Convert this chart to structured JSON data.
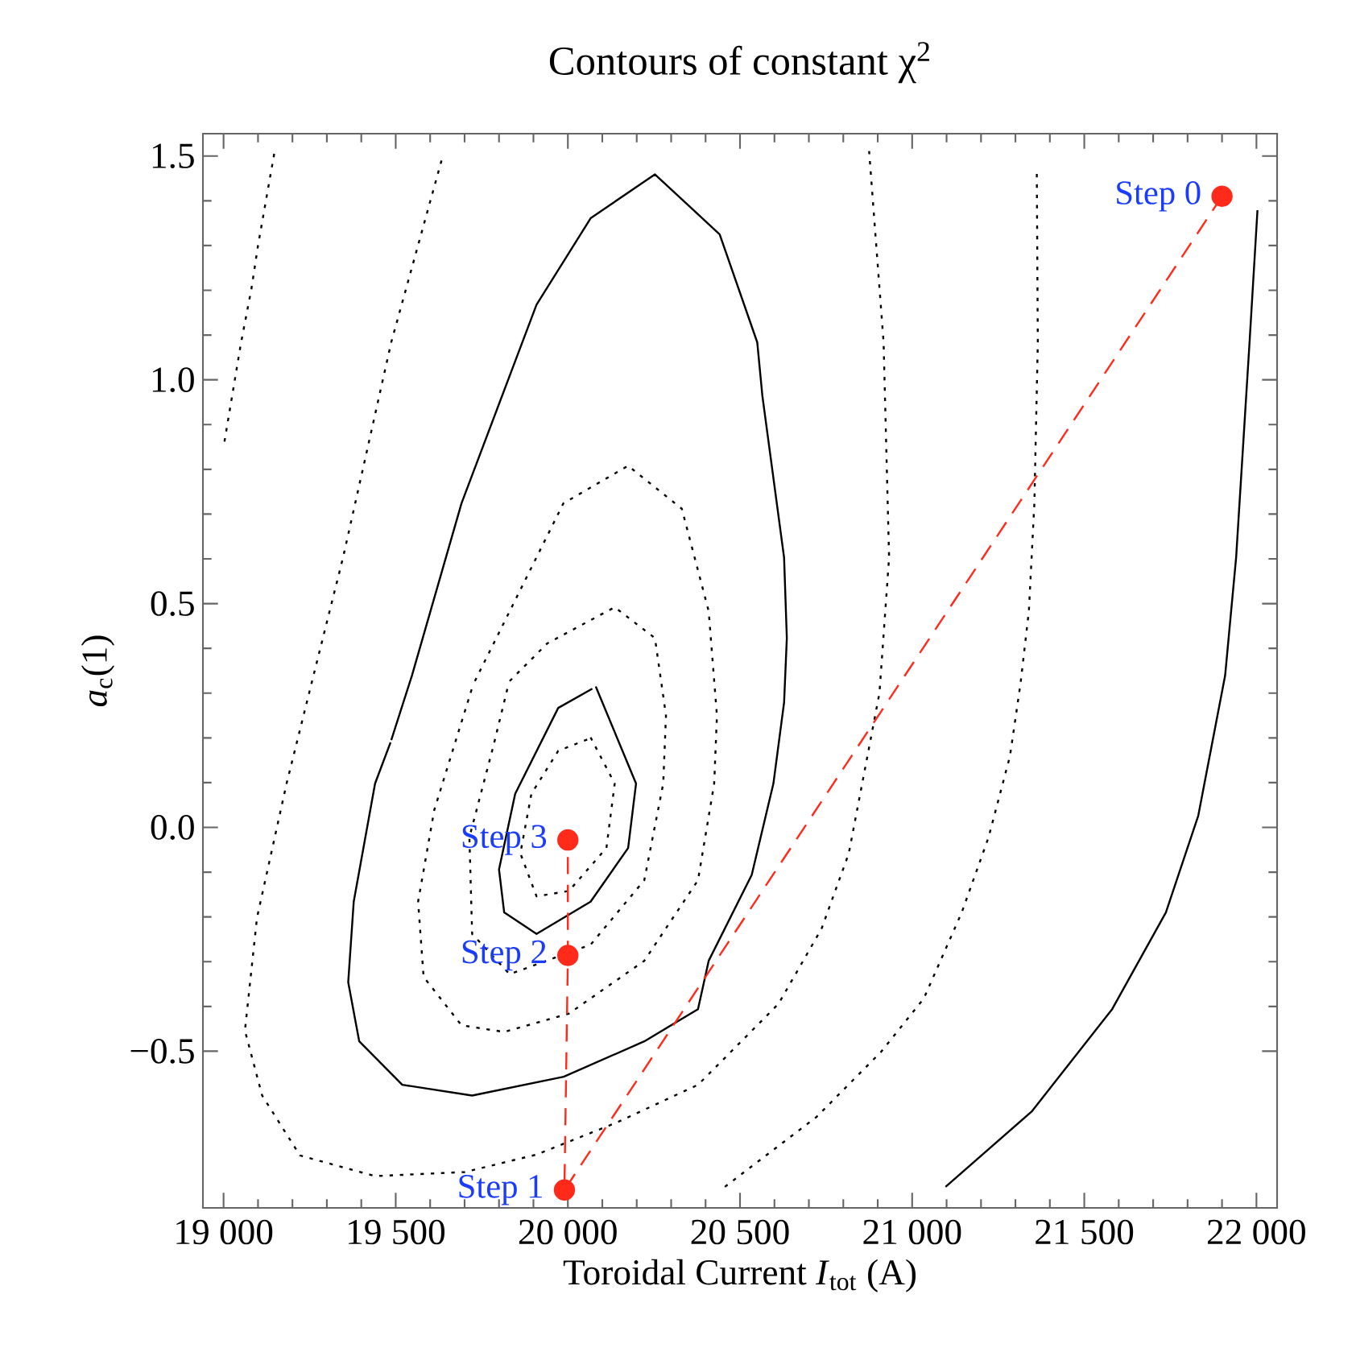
{
  "chart_data": {
    "type": "line",
    "title": "Contours of constant χ$^{2}$",
    "xlabel": "Toroidal Current *I*$_{tot}$ (A)",
    "ylabel": "*a*$_{c}$(1)",
    "xlim": [
      18940,
      22060
    ],
    "ylim": [
      -0.85,
      1.55
    ],
    "xticks": [
      {
        "value": 19000,
        "label": "19 000"
      },
      {
        "value": 19500,
        "label": "19 500"
      },
      {
        "value": 20000,
        "label": "20 000"
      },
      {
        "value": 20500,
        "label": "20 500"
      },
      {
        "value": 21000,
        "label": "21 000"
      },
      {
        "value": 21500,
        "label": "21 500"
      },
      {
        "value": 22000,
        "label": "22 000"
      }
    ],
    "yticks": [
      {
        "value": -0.5,
        "label": "−0.5"
      },
      {
        "value": 0,
        "label": "0.0"
      },
      {
        "value": 0.5,
        "label": "0.5"
      },
      {
        "value": 1,
        "label": "1.0"
      },
      {
        "value": 1.5,
        "label": "1.5"
      }
    ],
    "series": [
      {
        "color": "#000000",
        "line_style": "dotted",
        "marker": "none",
        "x": [
          19147,
          19100,
          19081,
          19050,
          19000
        ],
        "values": [
          1.505,
          1.3,
          1.204,
          1.08,
          0.85
        ]
      },
      {
        "color": "#000000",
        "line_style": "dotted",
        "marker": "none",
        "x": [
          19633,
          19487,
          19347,
          19261,
          19183,
          19097,
          19062,
          19112,
          19222,
          19440,
          19700,
          19909,
          20143,
          20378,
          20425,
          20612,
          20737,
          20816,
          20870,
          20905,
          20933,
          20917,
          20875
        ],
        "values": [
          1.49,
          1.084,
          0.603,
          0.339,
          0.098,
          -0.202,
          -0.454,
          -0.599,
          -0.733,
          -0.779,
          -0.77,
          -0.731,
          -0.659,
          -0.575,
          -0.539,
          -0.394,
          -0.226,
          -0.058,
          0.159,
          0.3,
          0.603,
          1.084,
          1.511
        ]
      },
      {
        "color": "#000000",
        "line_style": "dotted",
        "marker": "none",
        "x": [
          20456,
          20722,
          20909,
          21034,
          21144,
          21222,
          21284,
          21300,
          21315,
          21339,
          21355,
          21365,
          21362
        ],
        "values": [
          -0.803,
          -0.647,
          -0.502,
          -0.382,
          -0.19,
          -0.022,
          0.159,
          0.243,
          0.323,
          0.483,
          0.724,
          1.084,
          1.469
        ]
      },
      {
        "color": "#000000",
        "line_style": "solid",
        "marker": "none",
        "x": [
          19487,
          19547,
          19691,
          19909,
          20066,
          20253,
          20441,
          20550,
          20565,
          20628,
          20636,
          20628,
          20597,
          20534,
          20409,
          20378,
          20222,
          19988,
          19722,
          19519,
          19394,
          19362,
          19378,
          19440,
          19485
        ],
        "values": [
          0.195,
          0.339,
          0.724,
          1.168,
          1.361,
          1.459,
          1.325,
          1.084,
          0.964,
          0.603,
          0.423,
          0.279,
          0.098,
          -0.106,
          -0.298,
          -0.406,
          -0.478,
          -0.557,
          -0.599,
          -0.575,
          -0.478,
          -0.346,
          -0.166,
          0.098,
          0.19
        ]
      },
      {
        "color": "#000000",
        "line_style": "dotted",
        "marker": "none",
        "x": [
          19730,
          19831,
          19987,
          20175,
          20331,
          20409,
          20433,
          20425,
          20378,
          20222,
          20003,
          19815,
          19691,
          19581,
          19565,
          19612,
          19722
        ],
        "values": [
          0.327,
          0.483,
          0.724,
          0.808,
          0.712,
          0.483,
          0.25,
          0.098,
          -0.118,
          -0.298,
          -0.416,
          -0.457,
          -0.442,
          -0.334,
          -0.166,
          0.039,
          0.312
        ]
      },
      {
        "color": "#000000",
        "line_style": "dotted",
        "marker": "none",
        "x": [
          19831,
          19940,
          20136,
          20253,
          20285,
          20277,
          20222,
          20066,
          19831,
          19722,
          19714,
          19784,
          19826
        ],
        "values": [
          0.327,
          0.411,
          0.492,
          0.423,
          0.25,
          0.098,
          -0.118,
          -0.262,
          -0.328,
          -0.238,
          -0.022,
          0.183,
          0.315
        ]
      },
      {
        "color": "#000000",
        "line_style": "solid",
        "marker": "none",
        "x": [
          20081,
          20198,
          20175,
          20066,
          19909,
          19815,
          19800,
          19847,
          19972,
          20071
        ],
        "values": [
          0.315,
          0.098,
          -0.046,
          -0.166,
          -0.238,
          -0.19,
          -0.094,
          0.075,
          0.267,
          0.31
        ]
      },
      {
        "color": "#000000",
        "line_style": "dotted",
        "marker": "none",
        "x": [
          20066,
          20136,
          20112,
          20003,
          19909,
          19862,
          19894,
          19972,
          20058
        ],
        "values": [
          0.201,
          0.098,
          -0.046,
          -0.142,
          -0.154,
          -0.058,
          0.075,
          0.171,
          0.197
        ]
      },
      {
        "color": "#000000",
        "line_style": "solid",
        "marker": "none",
        "x": [
          21097,
          21347,
          21581,
          21737,
          21831,
          21909,
          21941,
          21980,
          22003
        ],
        "values": [
          -0.803,
          -0.635,
          -0.406,
          -0.19,
          0.026,
          0.339,
          0.603,
          1.084,
          1.379
        ]
      },
      {
        "color": "#ff2a1a",
        "line_style": "dashed",
        "marker": "circle",
        "x": [
          21900,
          19990,
          20000,
          20000
        ],
        "values": [
          1.41,
          -0.81,
          -0.286,
          -0.028
        ]
      }
    ],
    "annotations": [
      {
        "text": "Step 0",
        "x": 21900,
        "y": 1.41
      },
      {
        "text": "Step 1",
        "x": 19990,
        "y": -0.81
      },
      {
        "text": "Step 2",
        "x": 20000,
        "y": -0.286
      },
      {
        "text": "Step 3",
        "x": 20000,
        "y": -0.028
      }
    ]
  }
}
